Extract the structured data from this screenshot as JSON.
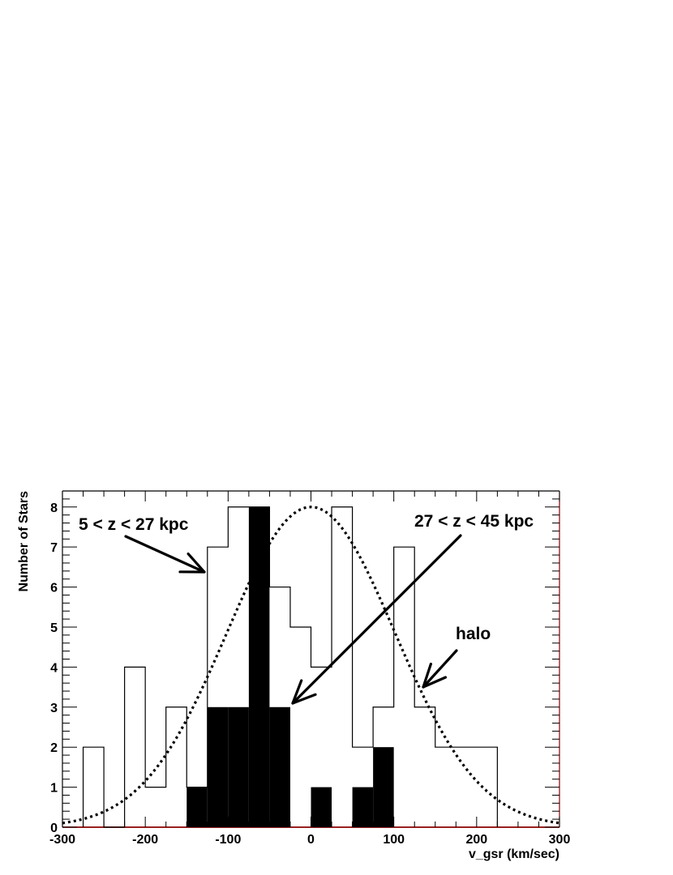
{
  "chart_data": {
    "type": "histogram",
    "xlabel": "v_gsr (km/sec)",
    "ylabel": "Number of Stars",
    "xlim": [
      -300,
      300
    ],
    "ylim": [
      0,
      8.4
    ],
    "x_ticks": [
      "-300",
      "-200",
      "-100",
      "0",
      "100",
      "200",
      "300"
    ],
    "y_ticks": [
      "0",
      "1",
      "2",
      "3",
      "4",
      "5",
      "6",
      "7",
      "8"
    ],
    "bin_edges": [
      -275,
      -250,
      -225,
      -200,
      -175,
      -150,
      -125,
      -100,
      -75,
      -50,
      -25,
      0,
      25,
      50,
      75,
      100,
      125,
      150,
      175,
      200,
      225
    ],
    "series": [
      {
        "name": "5 < z < 27 kpc",
        "style": "outline",
        "values": [
          2,
          0,
          4,
          1,
          3,
          1,
          7,
          8,
          8,
          6,
          5,
          4,
          8,
          2,
          3,
          7,
          3,
          2,
          2,
          2
        ]
      },
      {
        "name": "27 < z < 45 kpc",
        "style": "filled",
        "values": [
          0,
          0,
          0,
          0,
          0,
          1,
          3,
          3,
          8,
          3,
          0,
          1,
          0,
          1,
          2,
          0,
          0,
          0,
          0,
          0
        ]
      },
      {
        "name": "halo",
        "style": "dotted-curve",
        "function": "gaussian",
        "amplitude": 8,
        "mean": 0,
        "sigma": 101.6
      }
    ],
    "annotations": [
      {
        "text": "5 < z < 27 kpc"
      },
      {
        "text": "27 < z < 45 kpc"
      },
      {
        "text": "halo"
      }
    ],
    "grid": false,
    "legend": "none",
    "colors": {
      "outline": "#000000",
      "fill": "#000000",
      "axis_right": "#8b0000"
    }
  }
}
